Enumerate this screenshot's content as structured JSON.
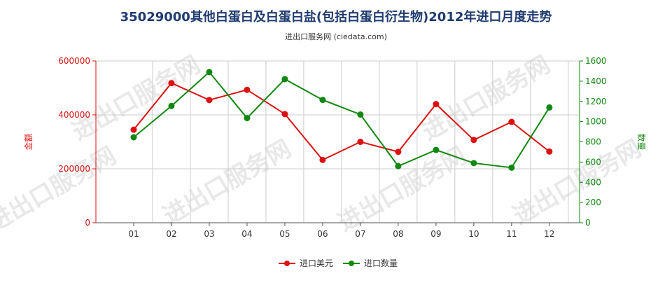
{
  "title": "35029000其他白蛋白及白蛋白盐(包括白蛋白衍生物)2012年进口月度走势",
  "subtitle": "进出口服务网 (ciedata.com)",
  "watermark": "进出口服务网",
  "colors": {
    "amount": "#dd1111",
    "quantity": "#118811",
    "grid": "#cccccc",
    "title": "#1f3b6f"
  },
  "chart_data": {
    "type": "line",
    "title": "35029000其他白蛋白及白蛋白盐(包括白蛋白衍生物)2012年进口月度走势",
    "categories": [
      "01",
      "02",
      "03",
      "04",
      "05",
      "06",
      "07",
      "08",
      "09",
      "10",
      "11",
      "12"
    ],
    "y_left": {
      "label": "金额",
      "range": [
        0,
        600000
      ],
      "ticks": [
        "0",
        "200000",
        "400000",
        "600000"
      ],
      "tick_values": [
        0,
        200000,
        400000,
        600000
      ]
    },
    "y_right": {
      "label": "数量",
      "range": [
        0,
        1600
      ],
      "ticks": [
        "0",
        "200",
        "400",
        "600",
        "800",
        "1000",
        "1200",
        "1400",
        "1600"
      ],
      "tick_values": [
        0,
        200,
        400,
        600,
        800,
        1000,
        1200,
        1400,
        1600
      ]
    },
    "series": [
      {
        "name": "进口美元",
        "axis": "left",
        "color": "#dd1111",
        "values": [
          345000,
          518000,
          455000,
          493000,
          403000,
          233000,
          300000,
          263000,
          440000,
          307000,
          374000,
          264000
        ]
      },
      {
        "name": "进口数量",
        "axis": "right",
        "color": "#118811",
        "values": [
          845,
          1155,
          1490,
          1035,
          1420,
          1215,
          1070,
          560,
          720,
          590,
          545,
          1140
        ]
      }
    ],
    "grid": true,
    "legend": "bottom-center"
  }
}
